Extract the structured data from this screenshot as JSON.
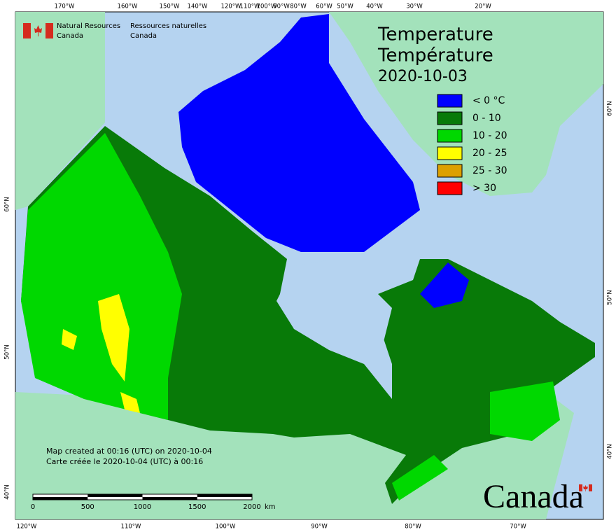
{
  "header": {
    "department_en": [
      "Natural Resources",
      "Canada"
    ],
    "department_fr": [
      "Ressources naturelles",
      "Canada"
    ]
  },
  "title": {
    "lines": [
      "Temperature",
      "Température"
    ],
    "date": "2020-10-03"
  },
  "legend": [
    {
      "label": "< 0 °C",
      "color": "#0000ff"
    },
    {
      "label": "0 - 10",
      "color": "#087a08"
    },
    {
      "label": "10 - 20",
      "color": "#00d800"
    },
    {
      "label": "20 - 25",
      "color": "#ffff00"
    },
    {
      "label": "25 - 30",
      "color": "#dda000"
    },
    {
      "label": "> 30",
      "color": "#ff0000"
    }
  ],
  "graticule": {
    "top": [
      "170°W",
      "160°W",
      "150°W",
      "140°W",
      "120°W",
      "110°W",
      "100°W",
      "90°W",
      "80°W",
      "60°W",
      "50°W",
      "40°W",
      "30°W",
      "20°W"
    ],
    "bottom": [
      "120°W",
      "110°W",
      "100°W",
      "90°W",
      "80°W",
      "70°W"
    ],
    "left": [
      "60°N",
      "50°N",
      "40°N"
    ],
    "right": [
      "60°N",
      "50°N",
      "40°N"
    ]
  },
  "scale_bar": {
    "labels": [
      "0",
      "500",
      "1000",
      "1500",
      "2000"
    ],
    "unit": "km"
  },
  "notes": [
    "Map created at 00:16 (UTC) on 2020-10-04",
    "Carte créée le 2020-10-04 (UTC) à 00:16"
  ],
  "wordmark": "Canada"
}
